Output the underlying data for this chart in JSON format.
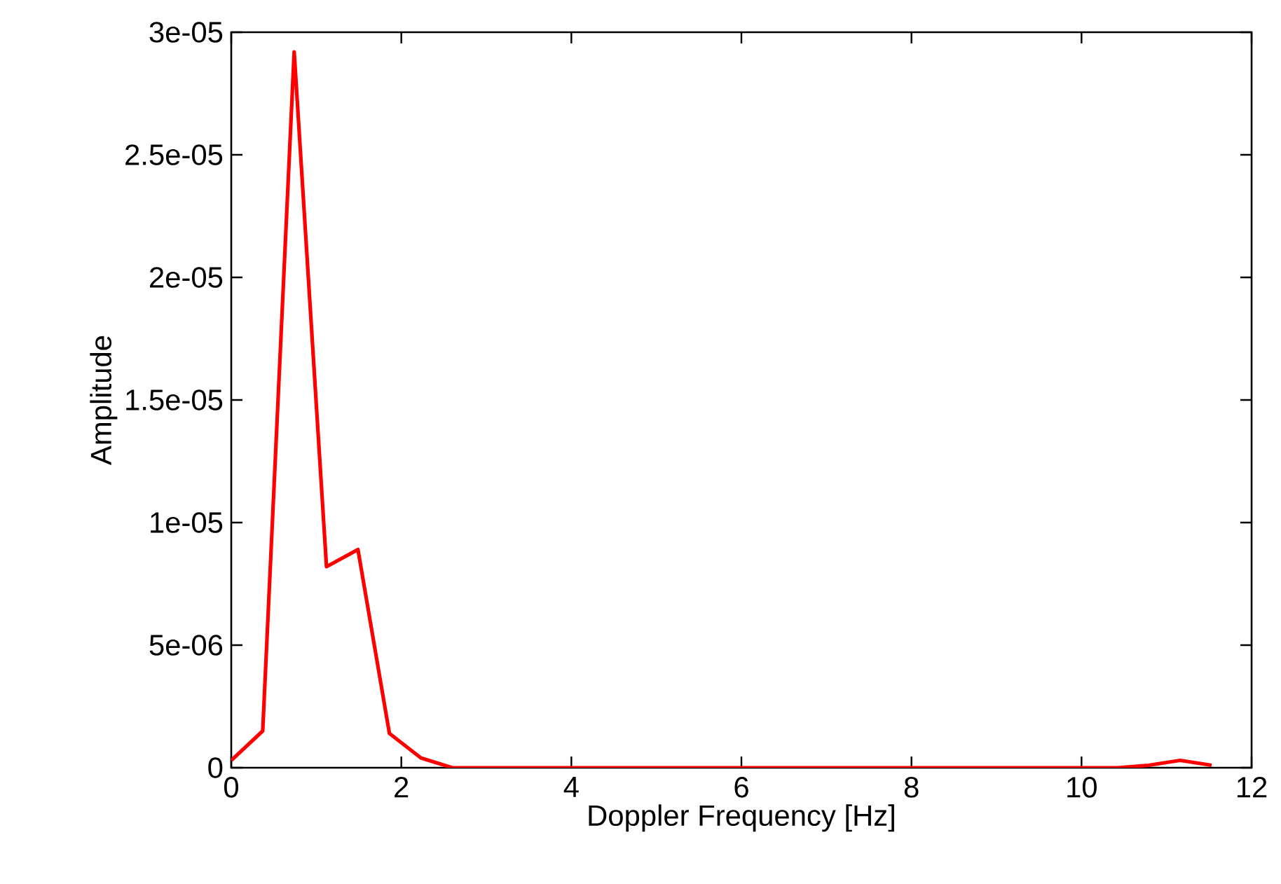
{
  "chart_data": {
    "type": "line",
    "xlabel": "Doppler Frequency [Hz]",
    "ylabel": "Amplitude",
    "x": [
      0,
      0.37,
      0.74,
      1.12,
      1.49,
      1.86,
      2.23,
      2.6,
      2.98,
      3.35,
      3.72,
      4.09,
      4.46,
      4.84,
      5.21,
      5.58,
      5.95,
      6.32,
      6.7,
      7.07,
      7.44,
      7.81,
      8.18,
      8.56,
      8.93,
      9.3,
      9.67,
      10.04,
      10.42,
      10.79,
      11.16,
      11.53
    ],
    "series": [
      {
        "color": "#ff0000",
        "values": [
          3e-07,
          1.5e-06,
          2.92e-05,
          8.2e-06,
          8.9e-06,
          1.4e-06,
          4e-07,
          0,
          0,
          0,
          0,
          0,
          0,
          0,
          0,
          0,
          0,
          0,
          0,
          0,
          0,
          0,
          0,
          0,
          0,
          0,
          0,
          0,
          0,
          1e-07,
          3e-07,
          1e-07
        ]
      }
    ],
    "xlim": [
      0,
      12
    ],
    "ylim": [
      0,
      3e-05
    ],
    "xticks": [
      0,
      2,
      4,
      6,
      8,
      10,
      12
    ],
    "yticks": [
      {
        "value": 0,
        "label": "0"
      },
      {
        "value": 5e-06,
        "label": "5e-06"
      },
      {
        "value": 1e-05,
        "label": "1e-05"
      },
      {
        "value": 1.5e-05,
        "label": "1.5e-05"
      },
      {
        "value": 2e-05,
        "label": "2e-05"
      },
      {
        "value": 2.5e-05,
        "label": "2.5e-05"
      },
      {
        "value": 3e-05,
        "label": "3e-05"
      }
    ],
    "grid": false,
    "marker": "none",
    "line_style": "solid"
  }
}
